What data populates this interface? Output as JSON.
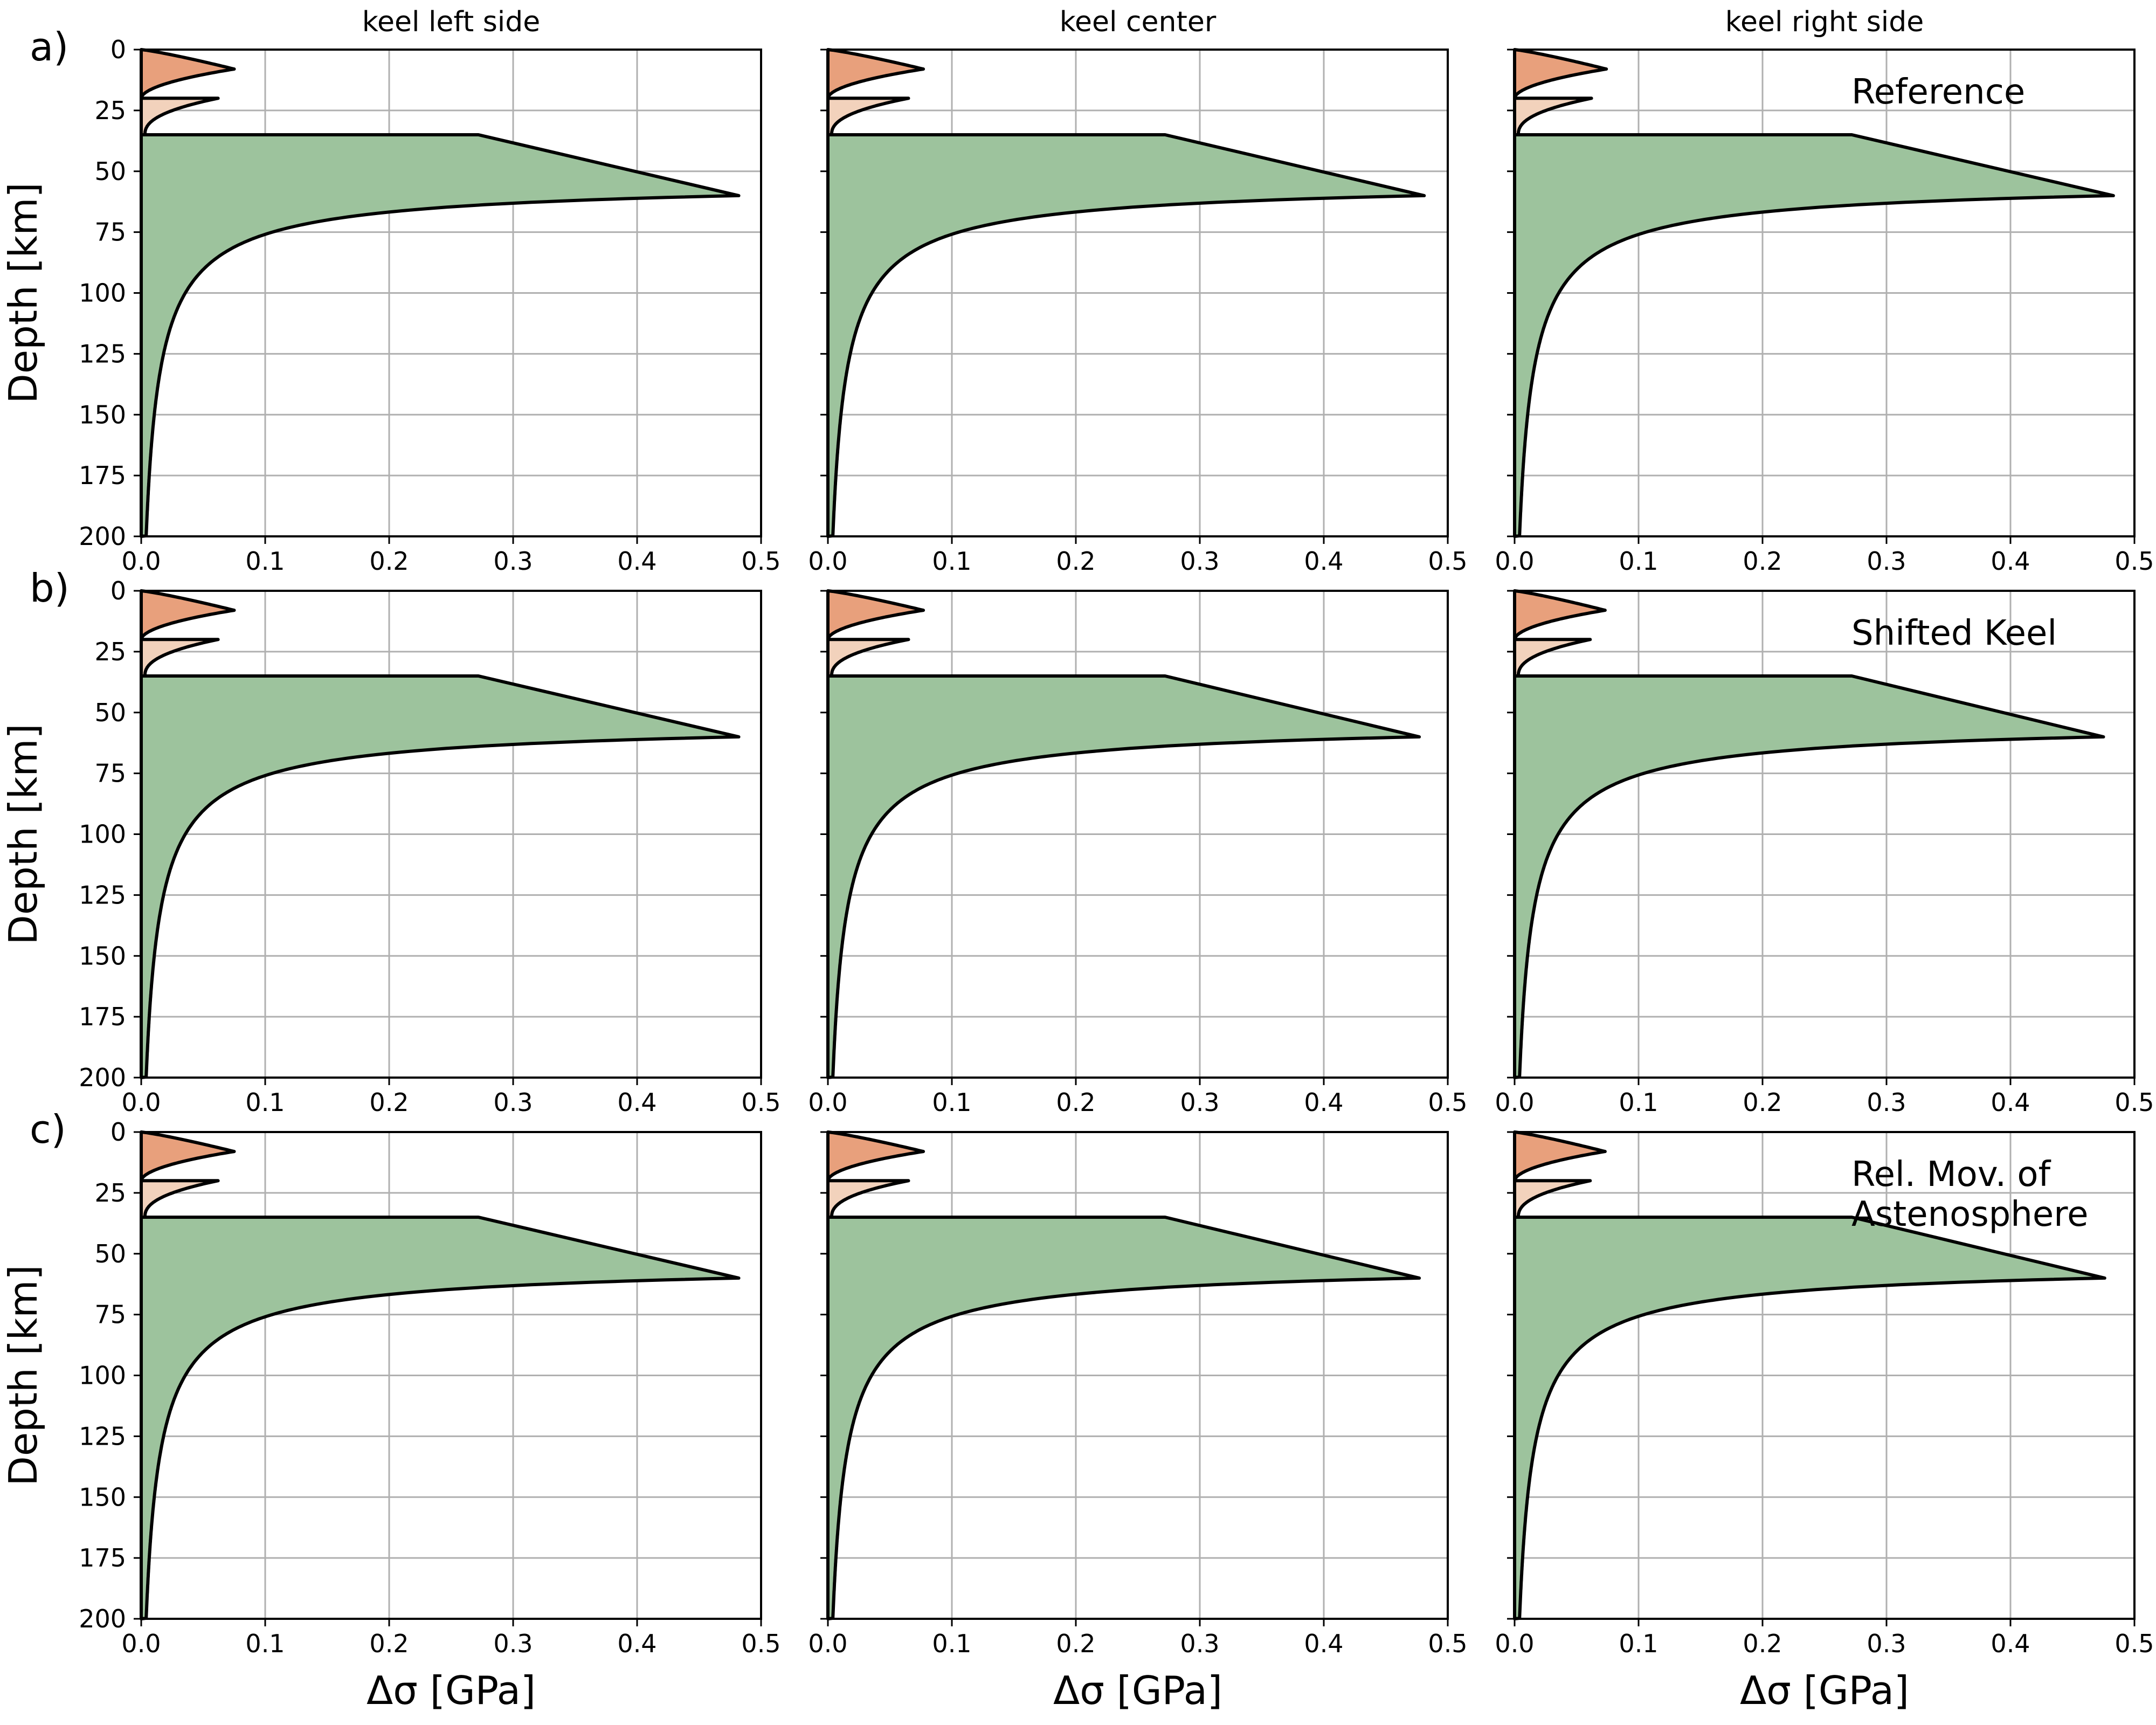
{
  "figure": {
    "column_titles": [
      "keel left side",
      "keel center",
      "keel right side"
    ],
    "row_labels": [
      "a)",
      "b)",
      "c)"
    ],
    "row_annotations": [
      [
        "Reference"
      ],
      [
        "Shifted Keel"
      ],
      [
        "Rel. Mov. of",
        "Astenosphere"
      ]
    ],
    "colors": {
      "upper_crust": "#e8a07c",
      "lower_crust": "#f2d2bc",
      "mantle": "#9dc39d",
      "outline": "#000000",
      "grid": "#b0b0b0"
    }
  },
  "chart_data": [
    {
      "type": "area",
      "panel": "a-left",
      "xlabel": "",
      "ylabel": "Depth [km]",
      "xlim": [
        0.0,
        0.5
      ],
      "ylim": [
        200,
        0
      ],
      "xticks": [
        "0.0",
        "0.1",
        "0.2",
        "0.3",
        "0.4",
        "0.5"
      ],
      "yticks": [
        "0",
        "25",
        "50",
        "75",
        "100",
        "125",
        "150",
        "175",
        "200"
      ],
      "grid": true,
      "layers": {
        "upper_crust": {
          "top": 0,
          "bottom": 20,
          "peak_depth": 8,
          "peak_value": 0.075
        },
        "lower_crust": {
          "top": 20,
          "bottom": 35,
          "peak_depth": 20,
          "peak_value": 0.062
        },
        "mantle": {
          "top": 35,
          "value_at_top": 0.272,
          "peak_depth": 60,
          "peak_value": 0.482,
          "value_at_200km": 0.004
        }
      }
    },
    {
      "type": "area",
      "panel": "a-center",
      "xlabel": "",
      "ylabel": "",
      "xlim": [
        0.0,
        0.5
      ],
      "ylim": [
        200,
        0
      ],
      "xticks": [
        "0.0",
        "0.1",
        "0.2",
        "0.3",
        "0.4",
        "0.5"
      ],
      "yticks": [],
      "grid": true,
      "layers": {
        "upper_crust": {
          "top": 0,
          "bottom": 20,
          "peak_depth": 8,
          "peak_value": 0.077
        },
        "lower_crust": {
          "top": 20,
          "bottom": 35,
          "peak_depth": 20,
          "peak_value": 0.065
        },
        "mantle": {
          "top": 35,
          "value_at_top": 0.272,
          "peak_depth": 60,
          "peak_value": 0.481,
          "value_at_200km": 0.004
        }
      }
    },
    {
      "type": "area",
      "panel": "a-right",
      "xlabel": "",
      "ylabel": "",
      "xlim": [
        0.0,
        0.5
      ],
      "ylim": [
        200,
        0
      ],
      "xticks": [
        "0.0",
        "0.1",
        "0.2",
        "0.3",
        "0.4",
        "0.5"
      ],
      "yticks": [],
      "grid": true,
      "layers": {
        "upper_crust": {
          "top": 0,
          "bottom": 20,
          "peak_depth": 8,
          "peak_value": 0.074
        },
        "lower_crust": {
          "top": 20,
          "bottom": 35,
          "peak_depth": 20,
          "peak_value": 0.062
        },
        "mantle": {
          "top": 35,
          "value_at_top": 0.272,
          "peak_depth": 60,
          "peak_value": 0.483,
          "value_at_200km": 0.004
        }
      }
    },
    {
      "type": "area",
      "panel": "b-left",
      "xlabel": "",
      "ylabel": "Depth [km]",
      "xlim": [
        0.0,
        0.5
      ],
      "ylim": [
        200,
        0
      ],
      "xticks": [
        "0.0",
        "0.1",
        "0.2",
        "0.3",
        "0.4",
        "0.5"
      ],
      "yticks": [
        "0",
        "25",
        "50",
        "75",
        "100",
        "125",
        "150",
        "175",
        "200"
      ],
      "grid": true,
      "layers": {
        "upper_crust": {
          "top": 0,
          "bottom": 20,
          "peak_depth": 8,
          "peak_value": 0.075
        },
        "lower_crust": {
          "top": 20,
          "bottom": 35,
          "peak_depth": 20,
          "peak_value": 0.062
        },
        "mantle": {
          "top": 35,
          "value_at_top": 0.272,
          "peak_depth": 60,
          "peak_value": 0.482,
          "value_at_200km": 0.004
        }
      }
    },
    {
      "type": "area",
      "panel": "b-center",
      "xlabel": "",
      "ylabel": "",
      "xlim": [
        0.0,
        0.5
      ],
      "ylim": [
        200,
        0
      ],
      "xticks": [
        "0.0",
        "0.1",
        "0.2",
        "0.3",
        "0.4",
        "0.5"
      ],
      "yticks": [],
      "grid": true,
      "layers": {
        "upper_crust": {
          "top": 0,
          "bottom": 20,
          "peak_depth": 8,
          "peak_value": 0.077
        },
        "lower_crust": {
          "top": 20,
          "bottom": 35,
          "peak_depth": 20,
          "peak_value": 0.065
        },
        "mantle": {
          "top": 35,
          "value_at_top": 0.272,
          "peak_depth": 60,
          "peak_value": 0.477,
          "value_at_200km": 0.004
        }
      }
    },
    {
      "type": "area",
      "panel": "b-right",
      "xlabel": "",
      "ylabel": "",
      "xlim": [
        0.0,
        0.5
      ],
      "ylim": [
        200,
        0
      ],
      "xticks": [
        "0.0",
        "0.1",
        "0.2",
        "0.3",
        "0.4",
        "0.5"
      ],
      "yticks": [],
      "grid": true,
      "layers": {
        "upper_crust": {
          "top": 0,
          "bottom": 20,
          "peak_depth": 8,
          "peak_value": 0.073
        },
        "lower_crust": {
          "top": 20,
          "bottom": 35,
          "peak_depth": 20,
          "peak_value": 0.061
        },
        "mantle": {
          "top": 35,
          "value_at_top": 0.272,
          "peak_depth": 60,
          "peak_value": 0.475,
          "value_at_200km": 0.004
        }
      }
    },
    {
      "type": "area",
      "panel": "c-left",
      "xlabel": "Δσ [GPa]",
      "ylabel": "Depth [km]",
      "xlim": [
        0.0,
        0.5
      ],
      "ylim": [
        200,
        0
      ],
      "xticks": [
        "0.0",
        "0.1",
        "0.2",
        "0.3",
        "0.4",
        "0.5"
      ],
      "yticks": [
        "0",
        "25",
        "50",
        "75",
        "100",
        "125",
        "150",
        "175",
        "200"
      ],
      "grid": true,
      "layers": {
        "upper_crust": {
          "top": 0,
          "bottom": 20,
          "peak_depth": 8,
          "peak_value": 0.075
        },
        "lower_crust": {
          "top": 20,
          "bottom": 35,
          "peak_depth": 20,
          "peak_value": 0.062
        },
        "mantle": {
          "top": 35,
          "value_at_top": 0.272,
          "peak_depth": 60,
          "peak_value": 0.482,
          "value_at_200km": 0.004
        }
      }
    },
    {
      "type": "area",
      "panel": "c-center",
      "xlabel": "Δσ [GPa]",
      "ylabel": "",
      "xlim": [
        0.0,
        0.5
      ],
      "ylim": [
        200,
        0
      ],
      "xticks": [
        "0.0",
        "0.1",
        "0.2",
        "0.3",
        "0.4",
        "0.5"
      ],
      "yticks": [],
      "grid": true,
      "layers": {
        "upper_crust": {
          "top": 0,
          "bottom": 20,
          "peak_depth": 8,
          "peak_value": 0.077
        },
        "lower_crust": {
          "top": 20,
          "bottom": 35,
          "peak_depth": 20,
          "peak_value": 0.065
        },
        "mantle": {
          "top": 35,
          "value_at_top": 0.272,
          "peak_depth": 60,
          "peak_value": 0.477,
          "value_at_200km": 0.004
        }
      }
    },
    {
      "type": "area",
      "panel": "c-right",
      "xlabel": "Δσ [GPa]",
      "ylabel": "",
      "xlim": [
        0.0,
        0.5
      ],
      "ylim": [
        200,
        0
      ],
      "xticks": [
        "0.0",
        "0.1",
        "0.2",
        "0.3",
        "0.4",
        "0.5"
      ],
      "yticks": [],
      "grid": true,
      "layers": {
        "upper_crust": {
          "top": 0,
          "bottom": 20,
          "peak_depth": 8,
          "peak_value": 0.073
        },
        "lower_crust": {
          "top": 20,
          "bottom": 35,
          "peak_depth": 20,
          "peak_value": 0.061
        },
        "mantle": {
          "top": 35,
          "value_at_top": 0.272,
          "peak_depth": 60,
          "peak_value": 0.476,
          "value_at_200km": 0.004
        }
      }
    }
  ]
}
